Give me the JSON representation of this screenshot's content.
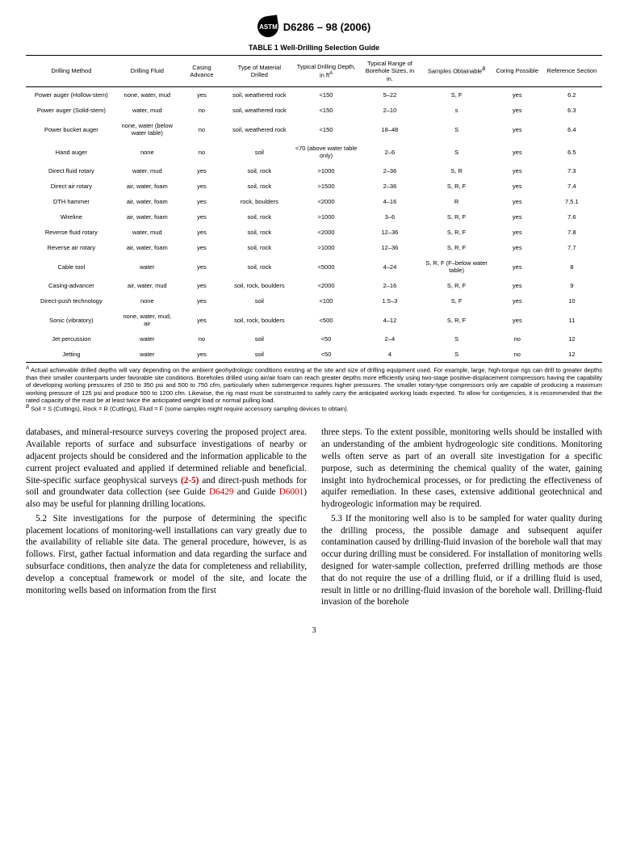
{
  "header": {
    "logo_text": "ASTM",
    "doc_id": "D6286 – 98 (2006)"
  },
  "table": {
    "caption": "TABLE 1 Well-Drilling Selection Guide",
    "columns": [
      "Drilling Method",
      "Drilling Fluid",
      "Casing Advance",
      "Type of Material Drilled",
      "Typical Drilling Depth, in ft",
      "Typical Range of Borehole Sizes, in in.",
      "Samples Obtainable",
      "Coring Possible",
      "Reference Section"
    ],
    "col_sup": {
      "4": "A",
      "6": "B"
    },
    "rows": [
      [
        "Power auger (Hollow-stem)",
        "none, water, mud",
        "yes",
        "soil, weathered rock",
        "<150",
        "5–22",
        "S, F",
        "yes",
        "6.2"
      ],
      [
        "Power auger (Solid-stem)",
        "water, mud",
        "no",
        "soil, weathered rock",
        "<150",
        "2–10",
        "s",
        "yes",
        "6.3"
      ],
      [
        "Power bucket auger",
        "none, water (below water table)",
        "no",
        "soil, weathered rock",
        "<150",
        "18–48",
        "S",
        "yes",
        "6.4"
      ],
      [
        "Hand auger",
        "none",
        "no",
        "soil",
        "<70 (above water table only)",
        "2–6",
        "S",
        "yes",
        "6.5"
      ],
      [
        "Direct fluid rotary",
        "water, mud",
        "yes",
        "soil, rock",
        ">1000",
        "2–36",
        "S, R",
        "yes",
        "7.3"
      ],
      [
        "Direct air rotary",
        "air, water, foam",
        "yes",
        "soil, rock",
        ">1500",
        "2–36",
        "S, R, F",
        "yes",
        "7.4"
      ],
      [
        "DTH hammer",
        "air, water, foam",
        "yes",
        "rock, boulders",
        "<2000",
        "4–16",
        "R",
        "yes",
        "7.5.1"
      ],
      [
        "Wireline",
        "air, water, foam",
        "yes",
        "soil, rock",
        ">1000",
        "3–6",
        "S, R, F",
        "yes",
        "7.6"
      ],
      [
        "Reverse fluid rotary",
        "water, mud",
        "yes",
        "soil, rock",
        "<2000",
        "12–36",
        "S, R, F",
        "yes",
        "7.8"
      ],
      [
        "Reverse air rotary",
        "air, water, foam",
        "yes",
        "soil, rock",
        ">1000",
        "12–36",
        "S, R, F",
        "yes",
        "7.7"
      ],
      [
        "Cable tool",
        "water",
        "yes",
        "soil, rock",
        "<5000",
        "4–24",
        "S, R, F (F–below water table)",
        "yes",
        "8"
      ],
      [
        "Casing-advancer",
        "air, water, mud",
        "yes",
        "soil, rock, boulders",
        "<2000",
        "2–16",
        "S, R, F",
        "yes",
        "9"
      ],
      [
        "Direct-push technology",
        "none",
        "yes",
        "soil",
        "<100",
        "1.5–3",
        "S, F",
        "yes",
        "10"
      ],
      [
        "Sonic (vibratory)",
        "none, water, mud, air",
        "yes",
        "soil, rock, boulders",
        "<500",
        "4–12",
        "S, R, F",
        "yes",
        "11"
      ],
      [
        "Jet percussion",
        "water",
        "no",
        "soil",
        "<50",
        "2–4",
        "S",
        "no",
        "12"
      ],
      [
        "Jetting",
        "water",
        "yes",
        "soil",
        "<50",
        "4",
        "S",
        "no",
        "12"
      ]
    ],
    "col_widths": [
      "15%",
      "10%",
      "8%",
      "11%",
      "11%",
      "10%",
      "12%",
      "8%",
      "10%"
    ]
  },
  "footnotes": {
    "A": "Actual achievable drilled depths will vary depending on the ambient geohydrologic conditions existing at the site and size of drilling equipment used. For example, large, high-torque rigs can drill to greater depths than their smaller counterparts under favorable site conditions. Boreholes drilled using air/air foam can reach greater depths more efficiently using two-stage positive-displacement compressors having the capability of developing working pressures of 250 to 350 psi and 500 to 750 cfm, particularly when submergence requires higher pressures. The smaller rotary-type compressors only are capable of producing a maximum working pressure of 125 psi and produce 500 to 1200 cfm. Likewise, the rig mast must be constructed to safely carry the anticipated working loads expected. To allow for contigencies, it is recommended that the rated capacity of the mast be at least twice the anticipated weight load or normal pulling load.",
    "B": "Soil = S (Cuttings), Rock = R (Cuttings), Fluid = F (some samples might require accessory sampling devices to obtain)."
  },
  "body": {
    "p1a": "databases, and mineral-resource surveys covering the proposed project area. Available reports of surface and subsurface investigations of nearby or adjacent projects should be considered and the information applicable to the current project evaluated and applied if determined reliable and beneficial. Site-specific surface geophysical surveys ",
    "p1_ref1": "(2-5)",
    "p1b": " and direct-push methods for soil and groundwater data collection (see Guide ",
    "p1_ref2": "D6429",
    "p1c": " and Guide ",
    "p1_ref3": "D6001",
    "p1d": ") also may be useful for planning drilling locations.",
    "p2": "5.2 Site investigations for the purpose of determining the specific placement locations of monitoring-well installations can vary greatly due to the availability of reliable site data. The general procedure, however, is as follows. First, gather factual information and data regarding the surface and subsurface conditions, then analyze the data for completeness and reliability, develop a conceptual framework or model of the site, and locate the monitoring wells based on information from the first",
    "p3": "three steps. To the extent possible, monitoring wells should be installed with an understanding of the ambient hydrogeologic site conditions. Monitoring wells often serve as part of an overall site investigation for a specific purpose, such as determining the chemical quality of the water, gaining insight into hydrochemical processes, or for predicting the effectiveness of aquifer remediation. In these cases, extensive additional geotechnical and hydrogeologic information may be required.",
    "p4": "5.3 If the monitoring well also is to be sampled for water quality during the drilling process, the possible damage and subsequent aquifer contamination caused by drilling-fluid invasion of the borehole wall that may occur during drilling must be considered. For installation of monitoring wells designed for water-sample collection, preferred drilling methods are those that do not require the use of a drilling fluid, or if a drilling fluid is used, result in little or no drilling-fluid invasion of the borehole wall. Drilling-fluid invasion of the borehole"
  },
  "page_number": "3"
}
